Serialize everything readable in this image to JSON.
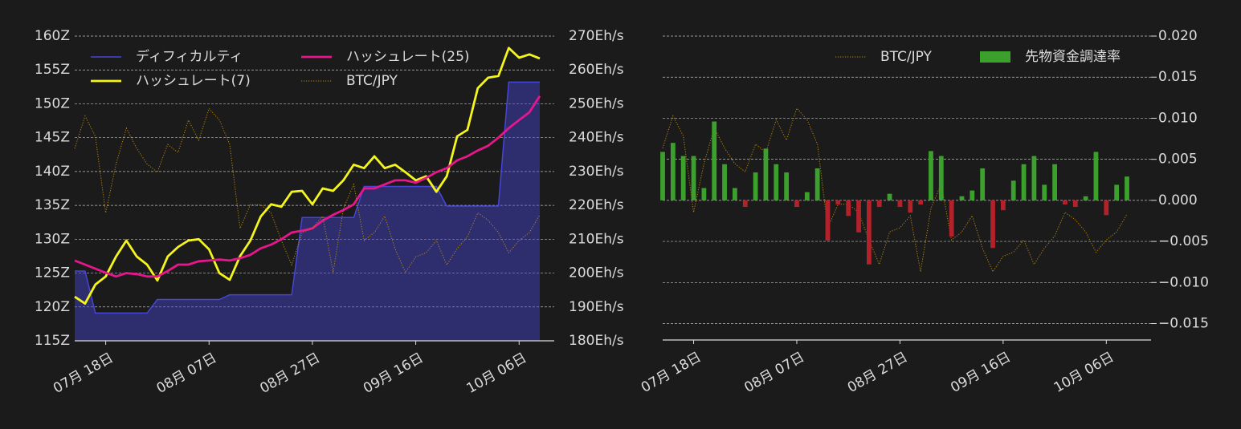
{
  "chart_data": [
    {
      "type": "line",
      "x": [
        "07-12",
        "07-14",
        "07-16",
        "07-18",
        "07-20",
        "07-22",
        "07-24",
        "07-26",
        "07-28",
        "07-30",
        "08-01",
        "08-03",
        "08-05",
        "08-07",
        "08-09",
        "08-11",
        "08-13",
        "08-15",
        "08-17",
        "08-19",
        "08-21",
        "08-23",
        "08-25",
        "08-27",
        "08-29",
        "08-31",
        "09-02",
        "09-04",
        "09-06",
        "09-08",
        "09-10",
        "09-12",
        "09-14",
        "09-16",
        "09-18",
        "09-20",
        "09-22",
        "09-24",
        "09-26",
        "09-28",
        "09-30",
        "10-02",
        "10-04",
        "10-06",
        "10-08",
        "10-10"
      ],
      "xticks": [
        {
          "value": "07-18",
          "label": "07月 18日"
        },
        {
          "value": "08-07",
          "label": "08月 07日"
        },
        {
          "value": "08-27",
          "label": "08月 27日"
        },
        {
          "value": "09-16",
          "label": "09月 16日"
        },
        {
          "value": "10-06",
          "label": "10月 06日"
        }
      ],
      "ylim": [
        115,
        160
      ],
      "yticks": [
        {
          "value": 115,
          "label": "115Z"
        },
        {
          "value": 120,
          "label": "120Z"
        },
        {
          "value": 125,
          "label": "125Z"
        },
        {
          "value": 130,
          "label": "130Z"
        },
        {
          "value": 135,
          "label": "135Z"
        },
        {
          "value": 140,
          "label": "140Z"
        },
        {
          "value": 145,
          "label": "145Z"
        },
        {
          "value": 150,
          "label": "150Z"
        },
        {
          "value": 155,
          "label": "155Z"
        },
        {
          "value": 160,
          "label": "160Z"
        }
      ],
      "y2lim": [
        180,
        270
      ],
      "y2ticks": [
        {
          "value": 180,
          "label": "180Eh/s"
        },
        {
          "value": 190,
          "label": "190Eh/s"
        },
        {
          "value": 200,
          "label": "200Eh/s"
        },
        {
          "value": 210,
          "label": "210Eh/s"
        },
        {
          "value": 220,
          "label": "220Eh/s"
        },
        {
          "value": 230,
          "label": "230Eh/s"
        },
        {
          "value": 240,
          "label": "240Eh/s"
        },
        {
          "value": 250,
          "label": "250Eh/s"
        },
        {
          "value": 260,
          "label": "260Eh/s"
        },
        {
          "value": 270,
          "label": "270Eh/s"
        }
      ],
      "y3lim": [
        7000000,
        11500000
      ],
      "grid": true,
      "legend": "upper-left",
      "series": [
        {
          "name": "ディフィカルティ",
          "color": "#4646d8",
          "style": "area",
          "values": [
            125.3,
            125.3,
            119.1,
            119.1,
            119.1,
            119.1,
            119.1,
            119.1,
            121.1,
            121.1,
            121.1,
            121.1,
            121.1,
            121.1,
            121.1,
            121.8,
            121.8,
            121.8,
            121.8,
            121.8,
            121.8,
            121.8,
            133.2,
            133.2,
            133.2,
            133.2,
            133.2,
            133.2,
            137.8,
            137.8,
            137.8,
            137.8,
            137.8,
            137.8,
            137.8,
            137.8,
            134.9,
            134.9,
            134.9,
            134.9,
            134.9,
            134.9,
            153.2,
            153.2,
            153.2,
            153.2
          ]
        },
        {
          "name": "ハッシュレート(7)",
          "color": "#f5f51e",
          "style": "line",
          "axis": "y2",
          "values": [
            193,
            191,
            196.6,
            199,
            204.9,
            209.6,
            204.9,
            202.5,
            197.8,
            204.9,
            207.7,
            209.6,
            210,
            207,
            200,
            198,
            205,
            209.6,
            216.7,
            220.3,
            219.6,
            224,
            224.3,
            220.3,
            225,
            224.3,
            227.4,
            232,
            231,
            234.5,
            231,
            232,
            229.8,
            227.4,
            228.6,
            224,
            228.6,
            240.4,
            242.3,
            254.6,
            257.7,
            258.2,
            266.5,
            263.6,
            264.6,
            263.4
          ]
        },
        {
          "name": "ハッシュレート(25)",
          "color": "#e6168c",
          "style": "line",
          "axis": "y2",
          "values": [
            203.7,
            202.5,
            201.3,
            200.1,
            199,
            200,
            199.7,
            199,
            199,
            200.6,
            202.5,
            202.5,
            203.5,
            203.7,
            204,
            203.7,
            204.4,
            205.4,
            207.3,
            208.4,
            210,
            212,
            212.5,
            213.2,
            215.5,
            217.2,
            218.6,
            220.3,
            225,
            225,
            226.2,
            227.4,
            227.4,
            226.7,
            228.1,
            229.8,
            231,
            233.3,
            234.5,
            236.2,
            237.6,
            240,
            242.8,
            245.2,
            247.5,
            252.3
          ]
        },
        {
          "name": "BTC/JPY",
          "color": "#b8860b",
          "style": "dotted",
          "axis": "y3",
          "values": [
            9840000,
            10320000,
            10020000,
            8890000,
            9610000,
            10140000,
            9840000,
            9610000,
            9490000,
            9900000,
            9780000,
            10260000,
            9960000,
            10430000,
            10260000,
            9900000,
            8660000,
            9010000,
            9010000,
            8890000,
            8480000,
            8120000,
            8600000,
            8660000,
            8840000,
            8010000,
            8950000,
            9310000,
            8480000,
            8600000,
            8840000,
            8360000,
            8010000,
            8240000,
            8300000,
            8480000,
            8120000,
            8360000,
            8540000,
            8890000,
            8780000,
            8600000,
            8300000,
            8480000,
            8600000,
            8860000
          ]
        }
      ]
    },
    {
      "type": "bar",
      "x": [
        "07-12",
        "07-14",
        "07-16",
        "07-18",
        "07-20",
        "07-22",
        "07-24",
        "07-26",
        "07-28",
        "07-30",
        "08-01",
        "08-03",
        "08-05",
        "08-07",
        "08-09",
        "08-11",
        "08-13",
        "08-15",
        "08-17",
        "08-19",
        "08-21",
        "08-23",
        "08-25",
        "08-27",
        "08-29",
        "08-31",
        "09-02",
        "09-04",
        "09-06",
        "09-08",
        "09-10",
        "09-12",
        "09-14",
        "09-16",
        "09-18",
        "09-20",
        "09-22",
        "09-24",
        "09-26",
        "09-28",
        "09-30",
        "10-02",
        "10-04",
        "10-06",
        "10-08",
        "10-10"
      ],
      "xticks": [
        {
          "value": "07-18",
          "label": "07月 18日"
        },
        {
          "value": "08-07",
          "label": "08月 07日"
        },
        {
          "value": "08-27",
          "label": "08月 27日"
        },
        {
          "value": "09-16",
          "label": "09月 16日"
        },
        {
          "value": "10-06",
          "label": "10月 06日"
        }
      ],
      "ylim": [
        -0.017,
        0.02
      ],
      "yticks": [
        {
          "value": -0.015,
          "label": "−0.015"
        },
        {
          "value": -0.01,
          "label": "−0.010"
        },
        {
          "value": -0.005,
          "label": "−0.005"
        },
        {
          "value": 0,
          "label": "0.000"
        },
        {
          "value": 0.005,
          "label": "0.005"
        },
        {
          "value": 0.01,
          "label": "0.010"
        },
        {
          "value": 0.015,
          "label": "0.015"
        },
        {
          "value": 0.02,
          "label": "0.020"
        }
      ],
      "y3lim": [
        7000000,
        11500000
      ],
      "grid": true,
      "legend": "upper-right",
      "series": [
        {
          "name": "BTC/JPY",
          "color": "#b8860b",
          "style": "dotted",
          "axis": "y3",
          "values": [
            9840000,
            10320000,
            10020000,
            8890000,
            9610000,
            10140000,
            9840000,
            9610000,
            9490000,
            9900000,
            9780000,
            10260000,
            9960000,
            10430000,
            10260000,
            9900000,
            8660000,
            9010000,
            9010000,
            8890000,
            8480000,
            8120000,
            8600000,
            8660000,
            8840000,
            8010000,
            8950000,
            9310000,
            8480000,
            8600000,
            8840000,
            8360000,
            8010000,
            8240000,
            8300000,
            8480000,
            8120000,
            8360000,
            8540000,
            8890000,
            8780000,
            8600000,
            8300000,
            8480000,
            8600000,
            8860000
          ]
        },
        {
          "name": "先物資金調達率",
          "color": "#3ca02c",
          "negative_color": "#b2222a",
          "style": "bar",
          "values": [
            0.0059,
            0.007,
            0.0054,
            0.0054,
            0.0015,
            0.0096,
            0.0044,
            0.0015,
            -0.0008,
            0.0034,
            0.0063,
            0.0044,
            0.0034,
            -0.0008,
            0.001,
            0.0039,
            -0.0049,
            -0.0005,
            -0.0019,
            -0.0039,
            -0.0078,
            -0.0008,
            0.0008,
            -0.0008,
            -0.0015,
            -0.0005,
            0.006,
            0.0054,
            -0.0044,
            0.0005,
            0.0012,
            0.0039,
            -0.0058,
            -0.0012,
            0.0024,
            0.0044,
            0.0054,
            0.0019,
            0.0044,
            -0.0005,
            -0.0008,
            0.0005,
            0.0059,
            -0.0018,
            0.0019,
            0.0029
          ]
        }
      ]
    }
  ]
}
